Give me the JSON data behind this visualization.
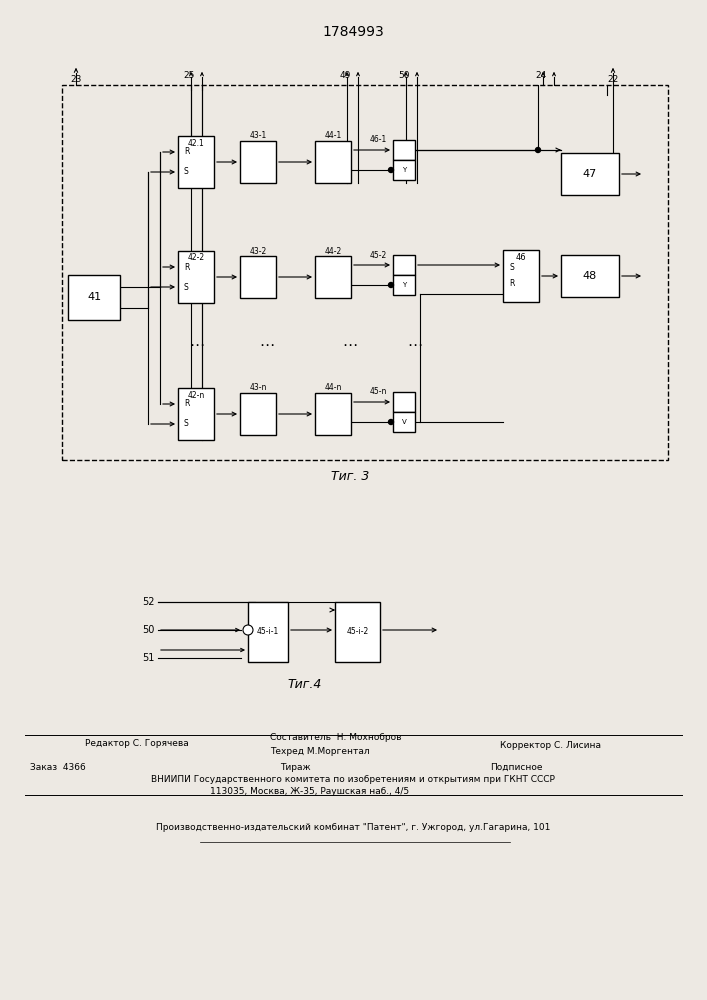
{
  "title": "1784993",
  "fig3_label": "Τиг. 3",
  "fig4_label": "Τиг.4",
  "bg_color": "#ede9e3"
}
